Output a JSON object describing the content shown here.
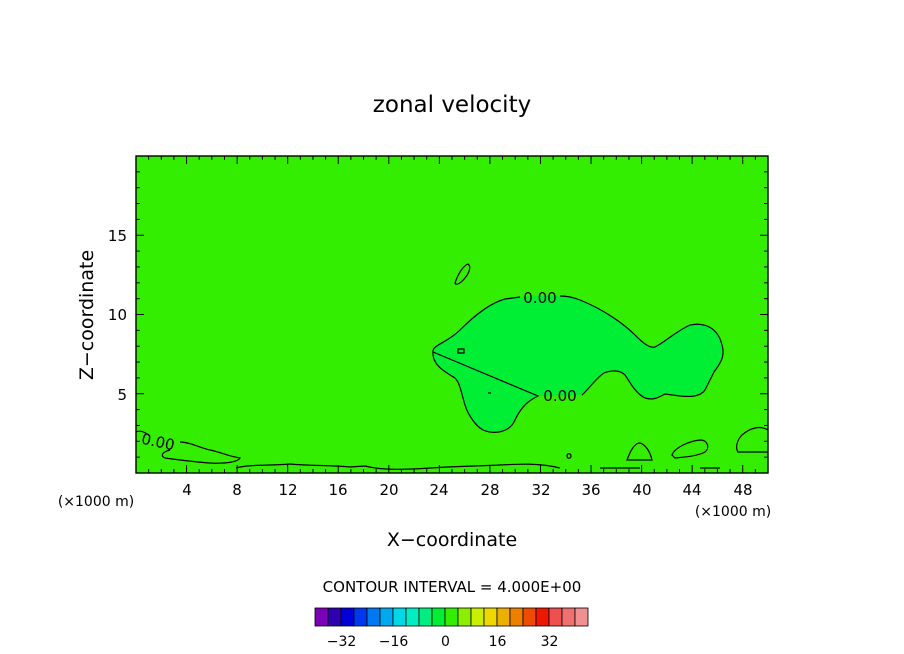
{
  "chart_data": {
    "type": "contour",
    "title": "zonal velocity",
    "xlabel": "X−coordinate",
    "ylabel": "Z−coordinate",
    "x_unit": "(×1000 m)",
    "y_unit": "(×1000 m)",
    "xlim": [
      0,
      50
    ],
    "ylim": [
      0,
      20
    ],
    "x_ticks": [
      "4",
      "8",
      "12",
      "16",
      "20",
      "24",
      "28",
      "32",
      "36",
      "40",
      "44",
      "48"
    ],
    "y_ticks": [
      "5",
      "10",
      "15"
    ],
    "contour_labels": [
      "0.00",
      "0.00",
      "0.00"
    ],
    "contour_interval_text": "CONTOUR INTERVAL = 4.000E+00",
    "background_color": "#33ee00",
    "zero_region_color": "#00ee33",
    "colorbar": {
      "colors": [
        "#7b00b8",
        "#2e00b0",
        "#0000d8",
        "#0038ee",
        "#0078f0",
        "#00a8f0",
        "#00d8e8",
        "#00eec0",
        "#00ee80",
        "#00ee33",
        "#33ee00",
        "#8cee00",
        "#c8ee00",
        "#eed800",
        "#eeb000",
        "#ee8000",
        "#ee4c00",
        "#ee1800",
        "#ee5050",
        "#f07070",
        "#f09090"
      ],
      "tick_labels": [
        "−32",
        "−16",
        "0",
        "16",
        "32"
      ],
      "tick_values": [
        -32,
        -16,
        0,
        16,
        32
      ]
    }
  }
}
